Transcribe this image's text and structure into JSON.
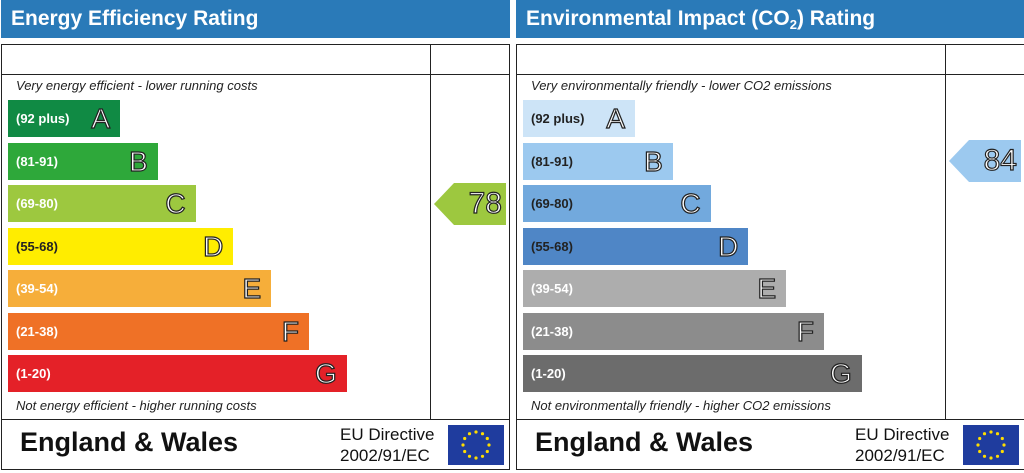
{
  "panels": [
    {
      "id": "energy",
      "title": "Energy Efficiency Rating",
      "top_note": "Very energy efficient - lower running costs",
      "bottom_note": "Not energy efficient - higher running costs",
      "footer_title": "England & Wales",
      "directive_line1": "EU Directive",
      "directive_line2": "2002/91/EC",
      "bands": [
        {
          "range": "(92 plus)",
          "letter": "A",
          "color": "#108a44"
        },
        {
          "range": "(81-91)",
          "letter": "B",
          "color": "#2ea83a"
        },
        {
          "range": "(69-80)",
          "letter": "C",
          "color": "#9dc83f"
        },
        {
          "range": "(55-68)",
          "letter": "D",
          "color": "#ffed00"
        },
        {
          "range": "(39-54)",
          "letter": "E",
          "color": "#f6ae3a"
        },
        {
          "range": "(21-38)",
          "letter": "F",
          "color": "#ef7126"
        },
        {
          "range": "(1-20)",
          "letter": "G",
          "color": "#e42128"
        }
      ],
      "current": {
        "value": "78",
        "color": "#9dc83f"
      }
    },
    {
      "id": "environmental",
      "title_prefix": "Environmental Impact (CO",
      "title_sub": "2",
      "title_suffix": ") Rating",
      "top_note": "Very environmentally friendly - lower CO2 emissions",
      "bottom_note": "Not environmentally friendly - higher CO2 emissions",
      "footer_title": "England & Wales",
      "directive_line1": "EU Directive",
      "directive_line2": "2002/91/EC",
      "bands": [
        {
          "range": "(92 plus)",
          "letter": "A",
          "color": "#cde4f7"
        },
        {
          "range": "(81-91)",
          "letter": "B",
          "color": "#9cc9ef"
        },
        {
          "range": "(69-80)",
          "letter": "C",
          "color": "#72a9dd"
        },
        {
          "range": "(55-68)",
          "letter": "D",
          "color": "#4f86c6"
        },
        {
          "range": "(39-54)",
          "letter": "E",
          "color": "#adadad"
        },
        {
          "range": "(21-38)",
          "letter": "F",
          "color": "#8c8c8c"
        },
        {
          "range": "(1-20)",
          "letter": "G",
          "color": "#6c6c6c"
        }
      ],
      "current": {
        "value": "84",
        "color": "#9cc9ef"
      }
    }
  ],
  "chart_data": [
    {
      "type": "bar",
      "title": "Energy Efficiency Rating",
      "categories": [
        "A (92 plus)",
        "B (81-91)",
        "C (69-80)",
        "D (55-68)",
        "E (39-54)",
        "F (21-38)",
        "G (1-20)"
      ],
      "current_rating": 78,
      "current_band": "C"
    },
    {
      "type": "bar",
      "title": "Environmental Impact (CO2) Rating",
      "categories": [
        "A (92 plus)",
        "B (81-91)",
        "C (69-80)",
        "D (55-68)",
        "E (39-54)",
        "F (21-38)",
        "G (1-20)"
      ],
      "current_rating": 84,
      "current_band": "B"
    }
  ]
}
